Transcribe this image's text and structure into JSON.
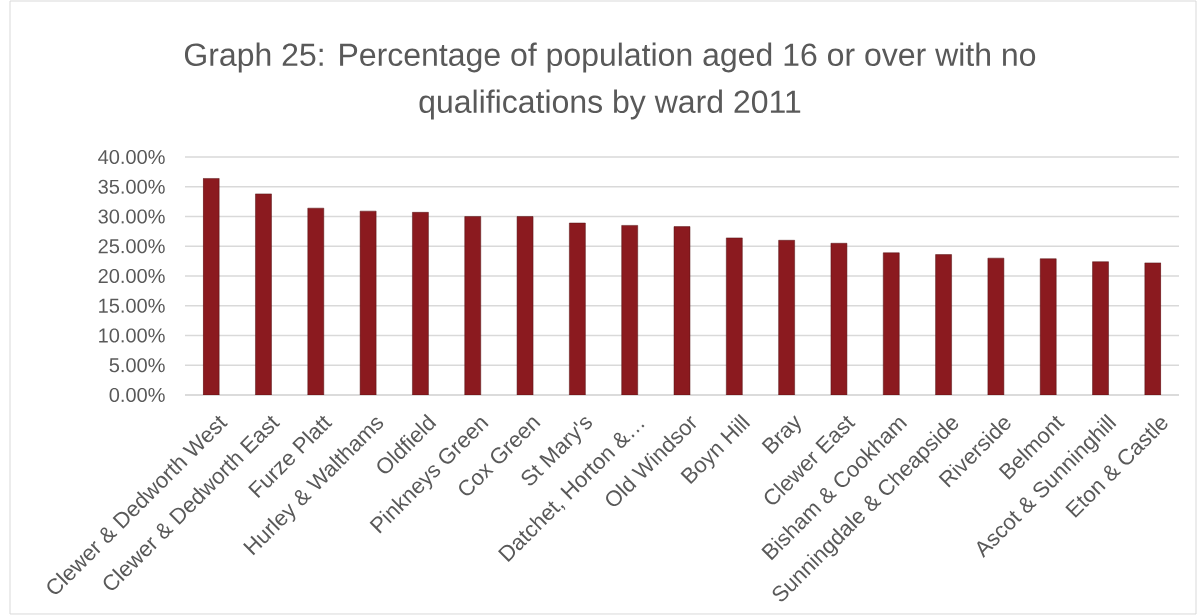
{
  "chart_data": {
    "type": "bar",
    "title": "Graph 25: Percentage of population aged 16 or over with no qualifications by ward 2011",
    "categories": [
      "Clewer & Dedworth West",
      "Clewer & Dedworth East",
      "Furze Platt",
      "Hurley & Walthams",
      "Oldfield",
      "Pinkneys Green",
      "Cox Green",
      "St Mary's",
      "Datchet, Horton &…",
      "Old Windsor",
      "Boyn Hill",
      "Bray",
      "Clewer East",
      "Bisham & Cookham",
      "Sunningdale & Cheapside",
      "Riverside",
      "Belmont",
      "Ascot & Sunninghill",
      "Eton & Castle"
    ],
    "values": [
      36.4,
      33.8,
      31.4,
      30.9,
      30.7,
      30.0,
      30.0,
      28.9,
      28.5,
      28.3,
      26.4,
      26.0,
      25.5,
      23.9,
      23.6,
      23.0,
      22.9,
      22.4,
      22.2
    ],
    "color": "#8b1a1f",
    "ylim": [
      0,
      40
    ],
    "yticks": [
      {
        "value": 0,
        "label": "0.00%"
      },
      {
        "value": 5,
        "label": "5.00%"
      },
      {
        "value": 10,
        "label": "10.00%"
      },
      {
        "value": 15,
        "label": "15.00%"
      },
      {
        "value": 20,
        "label": "20.00%"
      },
      {
        "value": 25,
        "label": "25.00%"
      },
      {
        "value": 30,
        "label": "30.00%"
      },
      {
        "value": 35,
        "label": "35.00%"
      },
      {
        "value": 40,
        "label": "40.00%"
      }
    ],
    "grid": "y"
  }
}
